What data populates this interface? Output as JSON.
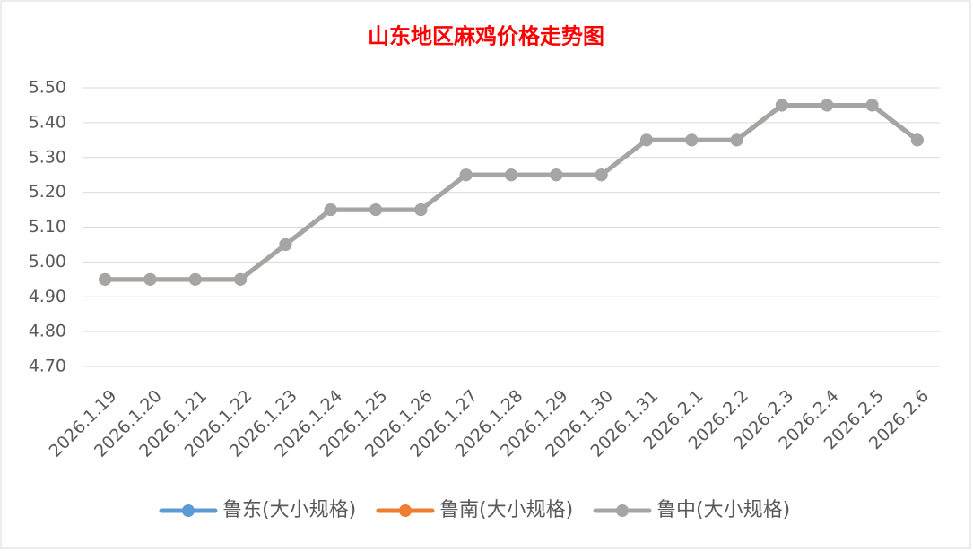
{
  "chart_data": {
    "type": "line",
    "title": "山东地区麻鸡价格走势图",
    "categories": [
      "2026.1.19",
      "2026.1.20",
      "2026.1.21",
      "2026.1.22",
      "2026.1.23",
      "2026.1.24",
      "2026.1.25",
      "2026.1.26",
      "2026.1.27",
      "2026.1.28",
      "2026.1.29",
      "2026.1.30",
      "2026.1.31",
      "2026.2.1",
      "2026.2.2",
      "2026.2.3",
      "2026.2.4",
      "2026.2.5",
      "2026.2.6"
    ],
    "series": [
      {
        "name": "鲁东(大小规格)",
        "color": "#5b9bd5",
        "values": [
          4.95,
          4.95,
          4.95,
          4.95,
          5.05,
          5.15,
          5.15,
          5.15,
          5.25,
          5.25,
          5.25,
          5.25,
          5.35,
          5.35,
          5.35,
          5.45,
          5.45,
          5.45,
          5.35
        ]
      },
      {
        "name": "鲁南(大小规格)",
        "color": "#ed7d31",
        "values": [
          4.95,
          4.95,
          4.95,
          4.95,
          5.05,
          5.15,
          5.15,
          5.15,
          5.25,
          5.25,
          5.25,
          5.25,
          5.35,
          5.35,
          5.35,
          5.45,
          5.45,
          5.45,
          5.35
        ]
      },
      {
        "name": "鲁中(大小规格)",
        "color": "#a5a5a5",
        "values": [
          4.95,
          4.95,
          4.95,
          4.95,
          5.05,
          5.15,
          5.15,
          5.15,
          5.25,
          5.25,
          5.25,
          5.25,
          5.35,
          5.35,
          5.35,
          5.45,
          5.45,
          5.45,
          5.35
        ]
      }
    ],
    "ylim": [
      4.7,
      5.5
    ],
    "yticks": [
      {
        "value": 4.7,
        "label": "4.70"
      },
      {
        "value": 4.8,
        "label": "4.80"
      },
      {
        "value": 4.9,
        "label": "4.90"
      },
      {
        "value": 5.0,
        "label": "5.00"
      },
      {
        "value": 5.1,
        "label": "5.10"
      },
      {
        "value": 5.2,
        "label": "5.20"
      },
      {
        "value": 5.3,
        "label": "5.30"
      },
      {
        "value": 5.4,
        "label": "5.40"
      },
      {
        "value": 5.5,
        "label": "5.50"
      }
    ],
    "grid": true,
    "legend": "bottom"
  }
}
